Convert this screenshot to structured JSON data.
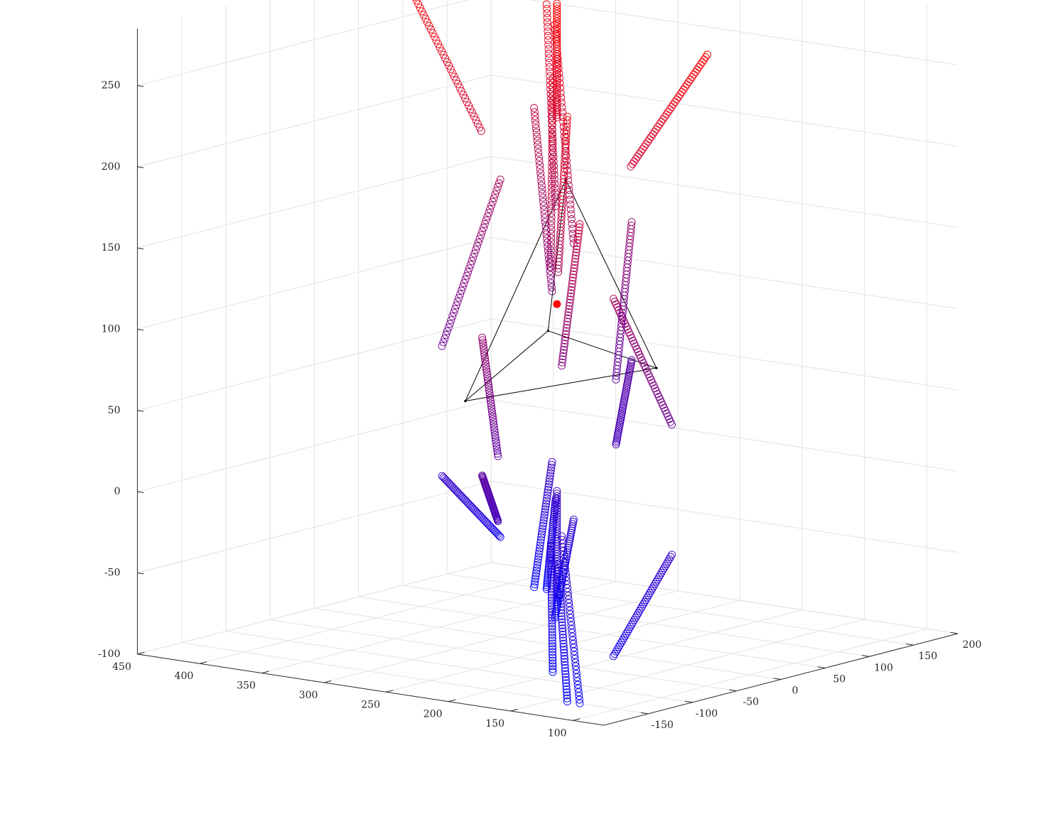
{
  "chart_data": {
    "type": "scatter3d",
    "title": "",
    "xlabel": "",
    "ylabel": "",
    "zlabel": "",
    "grid": true,
    "xlim": [
      75,
      450
    ],
    "ylim": [
      -200,
      200
    ],
    "zlim": [
      -100,
      285
    ],
    "x_ticks": [
      "450",
      "400",
      "350",
      "300",
      "250",
      "200",
      "150",
      "100"
    ],
    "y_ticks": [
      "-150",
      "-100",
      "-50",
      "0",
      "50",
      "100",
      "150",
      "200"
    ],
    "z_ticks": [
      "-100",
      "-50",
      "0",
      "50",
      "100",
      "150",
      "200",
      "250"
    ],
    "colors": {
      "top": "#ff0000",
      "bottom": "#0000ff",
      "triangle": "#000000",
      "center": "#ff0000"
    },
    "center_point": [
      255,
      0,
      110
    ],
    "triangle_vertices": [
      [
        255,
        -10,
        95
      ],
      [
        175,
        0,
        80
      ],
      [
        350,
        30,
        35
      ],
      [
        255,
        10,
        185
      ]
    ],
    "rays_note": "radial rod of sample points",
    "rays": [
      {
        "start": [
          255,
          0,
          225
        ],
        "end": [
          255,
          0,
          295
        ]
      },
      {
        "start": [
          255,
          0,
          -5
        ],
        "end": [
          255,
          0,
          -75
        ]
      },
      {
        "start": [
          270,
          40,
          140
        ],
        "end": [
          310,
          75,
          265
        ]
      },
      {
        "start": [
          235,
          -35,
          140
        ],
        "end": [
          205,
          -75,
          265
        ]
      },
      {
        "start": [
          330,
          20,
          205
        ],
        "end": [
          420,
          55,
          290
        ]
      },
      {
        "start": [
          185,
          -15,
          205
        ],
        "end": [
          95,
          -55,
          290
        ]
      },
      {
        "start": [
          320,
          90,
          150
        ],
        "end": [
          370,
          150,
          260
        ]
      },
      {
        "start": [
          190,
          -90,
          150
        ],
        "end": [
          140,
          -150,
          260
        ]
      },
      {
        "start": [
          330,
          100,
          95
        ],
        "end": [
          380,
          150,
          195
        ]
      },
      {
        "start": [
          180,
          -100,
          95
        ],
        "end": [
          130,
          -150,
          195
        ]
      },
      {
        "start": [
          390,
          60,
          60
        ],
        "end": [
          400,
          140,
          150
        ]
      },
      {
        "start": [
          120,
          -60,
          60
        ],
        "end": [
          110,
          -140,
          150
        ]
      },
      {
        "start": [
          300,
          130,
          40
        ],
        "end": [
          330,
          190,
          125
        ]
      },
      {
        "start": [
          210,
          -130,
          40
        ],
        "end": [
          180,
          -190,
          125
        ]
      },
      {
        "start": [
          300,
          130,
          0
        ],
        "end": [
          330,
          190,
          40
        ]
      },
      {
        "start": [
          210,
          -130,
          0
        ],
        "end": [
          180,
          -190,
          40
        ]
      },
      {
        "start": [
          330,
          100,
          -10
        ],
        "end": [
          380,
          150,
          -100
        ]
      },
      {
        "start": [
          180,
          -100,
          -10
        ],
        "end": [
          130,
          -150,
          -100
        ]
      },
      {
        "start": [
          390,
          60,
          -20
        ],
        "end": [
          400,
          140,
          -70
        ]
      },
      {
        "start": [
          120,
          -60,
          -20
        ],
        "end": [
          110,
          -140,
          -70
        ]
      },
      {
        "start": [
          320,
          90,
          -30
        ],
        "end": [
          370,
          150,
          -100
        ]
      },
      {
        "start": [
          190,
          -90,
          -30
        ],
        "end": [
          140,
          -150,
          -100
        ]
      },
      {
        "start": [
          270,
          40,
          -30
        ],
        "end": [
          310,
          75,
          -100
        ]
      },
      {
        "start": [
          235,
          -35,
          -30
        ],
        "end": [
          205,
          -75,
          -100
        ]
      }
    ]
  }
}
